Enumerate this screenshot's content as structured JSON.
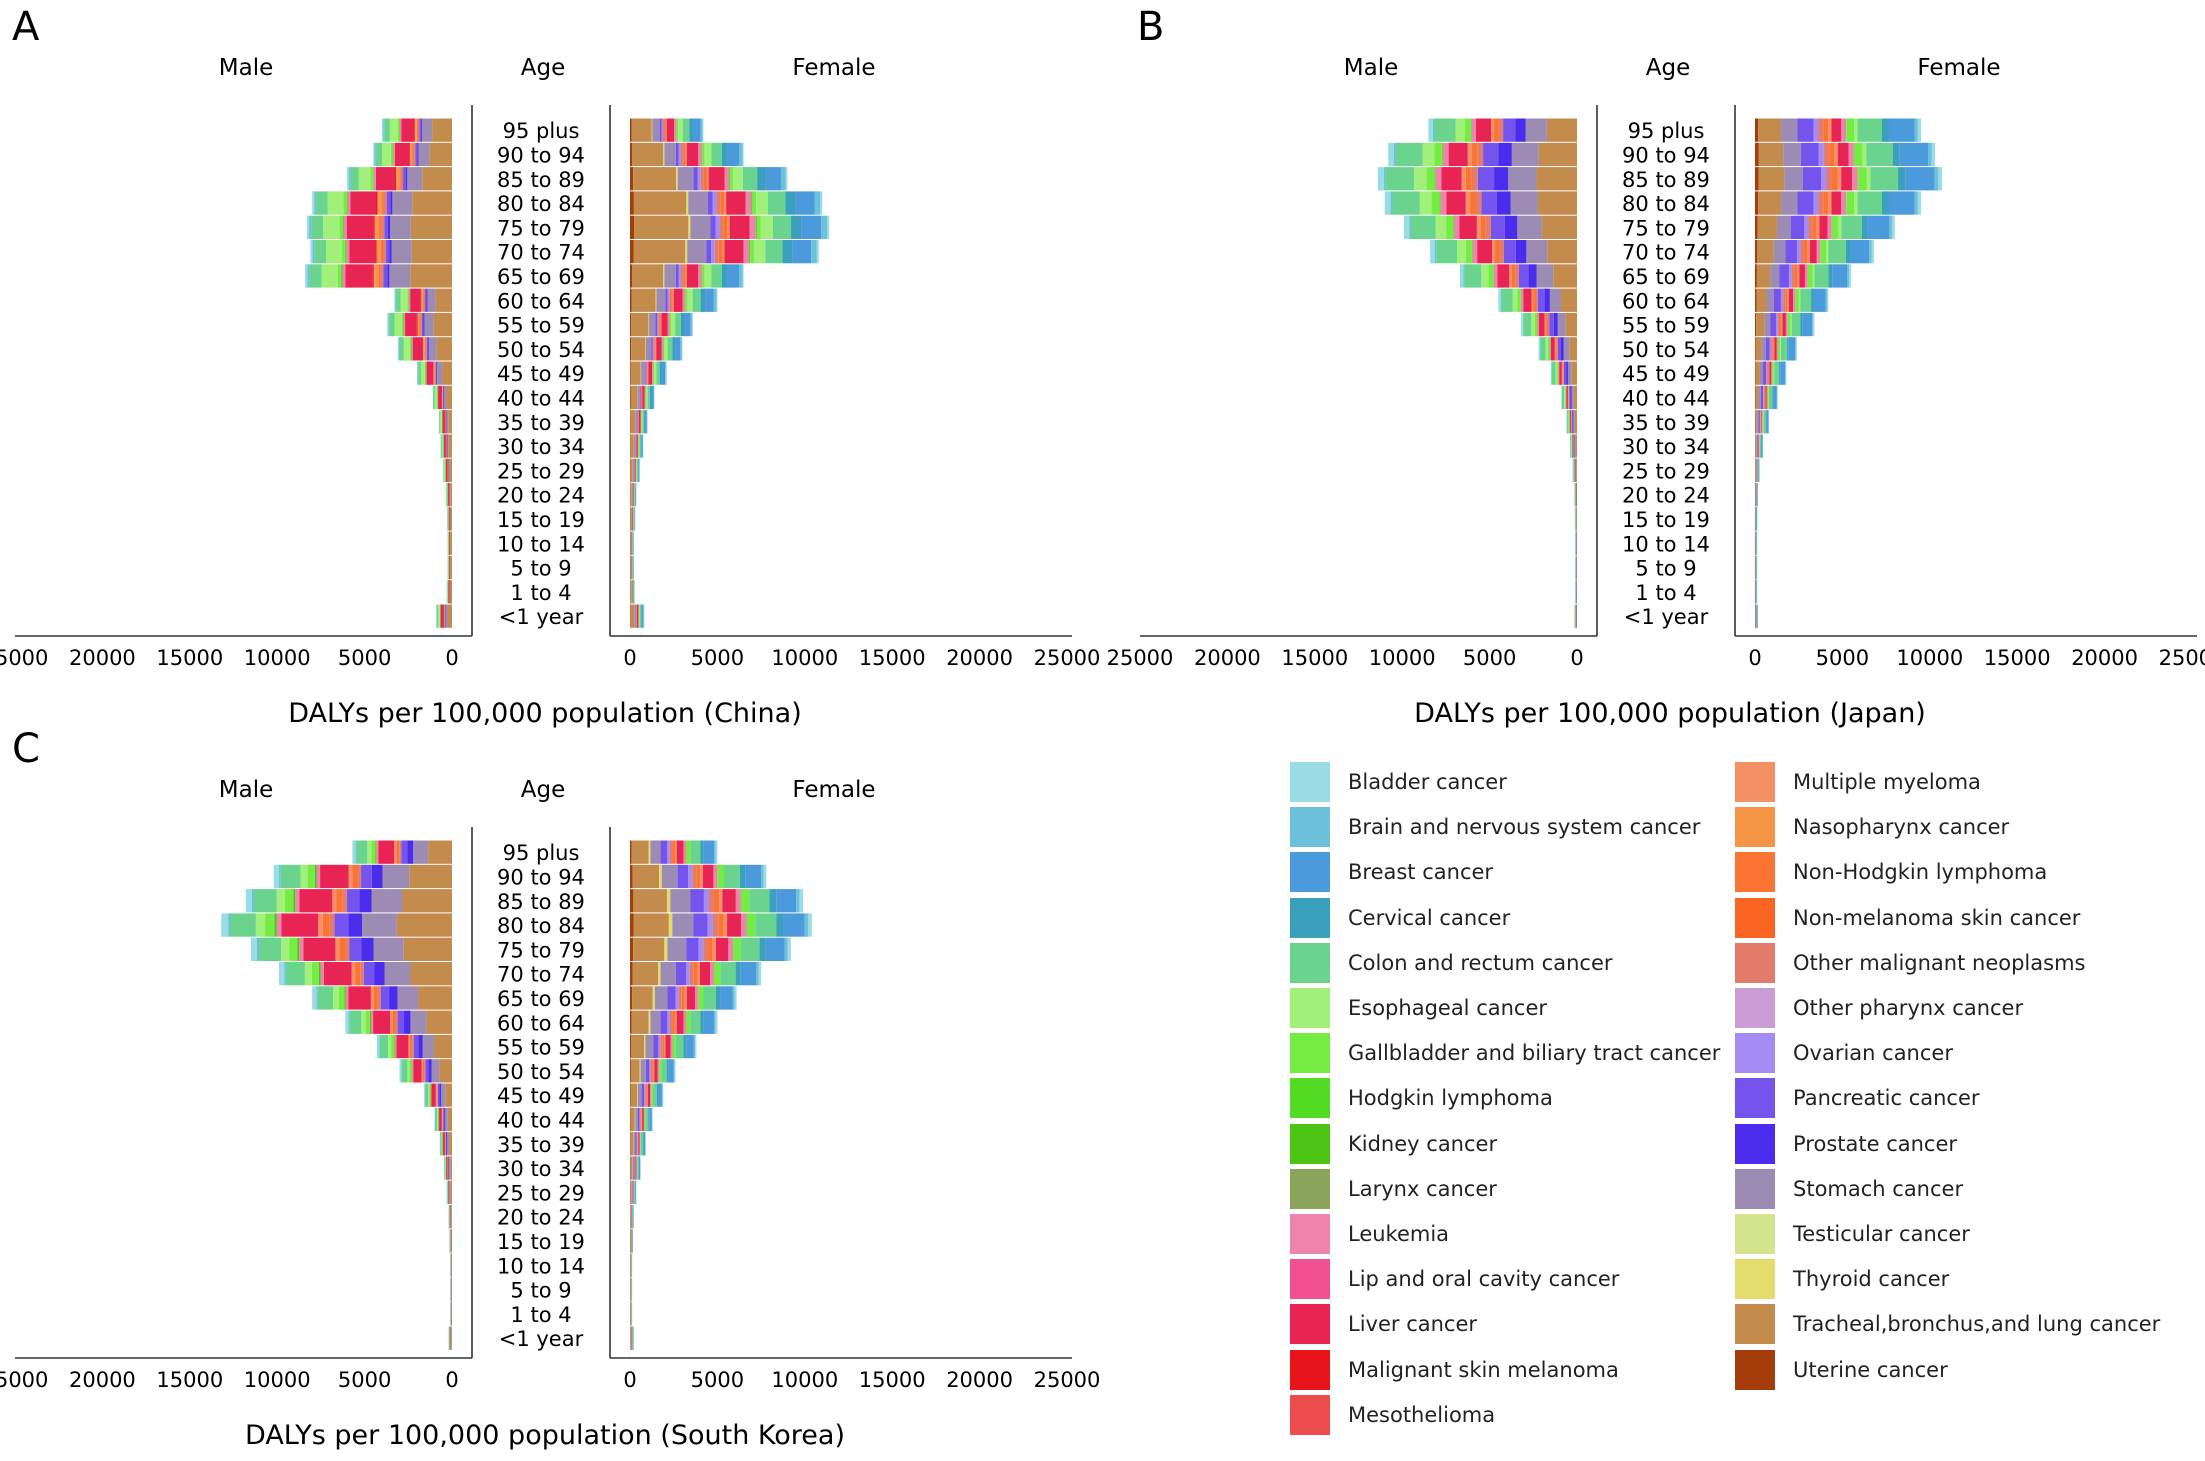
{
  "chart_data": {
    "type": "bar",
    "subtype": "population-pyramid-stacked",
    "age_groups": [
      "<1 year",
      "1 to 4",
      "5 to 9",
      "10 to 14",
      "15 to 19",
      "20 to 24",
      "25 to 29",
      "30 to 34",
      "35 to 39",
      "40 to 44",
      "45 to 49",
      "50 to 54",
      "55 to 59",
      "60 to 64",
      "65 to 69",
      "70 to 74",
      "75 to 79",
      "80 to 84",
      "85 to 89",
      "90 to 94",
      "95 plus"
    ],
    "causes": [
      "Bladder cancer",
      "Brain and nervous system cancer",
      "Breast cancer",
      "Cervical cancer",
      "Colon and rectum cancer",
      "Esophageal cancer",
      "Gallbladder and biliary tract cancer",
      "Hodgkin lymphoma",
      "Kidney cancer",
      "Larynx cancer",
      "Leukemia",
      "Lip and oral cavity cancer",
      "Liver cancer",
      "Malignant skin melanoma",
      "Mesothelioma",
      "Multiple myeloma",
      "Nasopharynx cancer",
      "Non-Hodgkin lymphoma",
      "Non-melanoma skin cancer",
      "Other malignant neoplasms",
      "Other pharynx cancer",
      "Ovarian cancer",
      "Pancreatic cancer",
      "Prostate cancer",
      "Stomach cancer",
      "Testicular cancer",
      "Thyroid cancer",
      "Tracheal,bronchus,and lung cancer",
      "Uterine cancer"
    ],
    "colors": [
      "#9adce4",
      "#6cc0dc",
      "#4a9adc",
      "#3aa0bc",
      "#6ad48e",
      "#a0f07a",
      "#74ec44",
      "#54dc24",
      "#4cc414",
      "#8aa45c",
      "#ec84ac",
      "#f05090",
      "#e82454",
      "#e8141c",
      "#ec4c4c",
      "#f49064",
      "#f49444",
      "#fc7434",
      "#fc6424",
      "#e47c6c",
      "#cc9cd4",
      "#a48cf4",
      "#7454ec",
      "#4c2cec",
      "#9c8cb4",
      "#d4e48c",
      "#e4dc6c",
      "#c48c4c",
      "#a43c0c"
    ],
    "shared_axis": {
      "male_ticks": [
        "25000",
        "20000",
        "15000",
        "10000",
        "5000",
        "0"
      ],
      "female_ticks": [
        "0",
        "5000",
        "10000",
        "15000",
        "20000",
        "25000"
      ],
      "range": [
        0,
        25000
      ]
    },
    "header_labels": {
      "male": "Male",
      "age": "Age",
      "female": "Female"
    },
    "panels": [
      {
        "letter": "A",
        "xlabel": "DALYs per 100,000 population (China)",
        "male_totals": [
          900,
          300,
          250,
          250,
          280,
          350,
          500,
          650,
          750,
          1100,
          2000,
          3100,
          3700,
          3300,
          8400,
          8100,
          8300,
          8000,
          6000,
          4500,
          4000
        ],
        "female_totals": [
          800,
          250,
          200,
          200,
          280,
          350,
          550,
          750,
          1000,
          1400,
          2100,
          3000,
          3600,
          5000,
          6500,
          10800,
          11400,
          11000,
          9000,
          6500,
          4200
        ],
        "male_comp": {
          "Bladder cancer": 0.015,
          "Brain and nervous system cancer": 0.015,
          "Colon and rectum cancer": 0.08,
          "Esophageal cancer": 0.11,
          "Gallbladder and biliary tract cancer": 0.02,
          "Hodgkin lymphoma": 0.005,
          "Kidney cancer": 0.005,
          "Leukemia": 0.02,
          "Liver cancer": 0.18,
          "Malignant skin melanoma": 0.01,
          "Multiple myeloma": 0.01,
          "Nasopharynx cancer": 0.02,
          "Non-Hodgkin lymphoma": 0.015,
          "Other malignant neoplasms": 0.02,
          "Pancreatic cancer": 0.025,
          "Prostate cancer": 0.015,
          "Stomach cancer": 0.14,
          "Tracheal,bronchus,and lung cancer": 0.28
        },
        "female_comp": {
          "Bladder cancer": 0.01,
          "Brain and nervous system cancer": 0.03,
          "Breast cancer": 0.1,
          "Cervical cancer": 0.05,
          "Colon and rectum cancer": 0.09,
          "Esophageal cancer": 0.06,
          "Gallbladder and biliary tract cancer": 0.02,
          "Kidney cancer": 0.005,
          "Leukemia": 0.03,
          "Liver cancer": 0.1,
          "Multiple myeloma": 0.01,
          "Non-Hodgkin lymphoma": 0.02,
          "Other malignant neoplasms": 0.02,
          "Ovarian cancer": 0.02,
          "Pancreatic cancer": 0.025,
          "Stomach cancer": 0.1,
          "Thyroid cancer": 0.01,
          "Tracheal,bronchus,and lung cancer": 0.27,
          "Uterine cancer": 0.02
        }
      },
      {
        "letter": "B",
        "xlabel": "DALYs per 100,000 population (Japan)",
        "male_totals": [
          150,
          100,
          100,
          100,
          120,
          150,
          250,
          400,
          600,
          900,
          1500,
          2200,
          3200,
          4500,
          6700,
          8400,
          9900,
          11000,
          11400,
          10800,
          8500
        ],
        "female_totals": [
          150,
          100,
          100,
          100,
          120,
          150,
          250,
          450,
          800,
          1300,
          1800,
          2400,
          3400,
          4200,
          5500,
          6800,
          8000,
          9500,
          10700,
          10300,
          9500
        ],
        "male_comp": {
          "Bladder cancer": 0.03,
          "Brain and nervous system cancer": 0.01,
          "Colon and rectum cancer": 0.14,
          "Esophageal cancer": 0.06,
          "Gallbladder and biliary tract cancer": 0.04,
          "Hodgkin lymphoma": 0.005,
          "Leukemia": 0.03,
          "Liver cancer": 0.1,
          "Multiple myeloma": 0.02,
          "Non-Hodgkin lymphoma": 0.03,
          "Other malignant neoplasms": 0.03,
          "Pancreatic cancer": 0.08,
          "Prostate cancer": 0.07,
          "Stomach cancer": 0.14,
          "Tracheal,bronchus,and lung cancer": 0.2
        },
        "female_comp": {
          "Bladder cancer": 0.02,
          "Brain and nervous system cancer": 0.02,
          "Breast cancer": 0.16,
          "Cervical cancer": 0.04,
          "Colon and rectum cancer": 0.15,
          "Esophageal cancer": 0.02,
          "Gallbladder and biliary tract cancer": 0.05,
          "Leukemia": 0.03,
          "Liver cancer": 0.06,
          "Multiple myeloma": 0.02,
          "Non-Hodgkin lymphoma": 0.03,
          "Other malignant neoplasms": 0.03,
          "Ovarian cancer": 0.03,
          "Pancreatic cancer": 0.1,
          "Stomach cancer": 0.1,
          "Tracheal,bronchus,and lung cancer": 0.14,
          "Uterine cancer": 0.02
        }
      },
      {
        "letter": "C",
        "xlabel": "DALYs per 100,000 population (South Korea)",
        "male_totals": [
          200,
          100,
          100,
          100,
          150,
          200,
          300,
          450,
          700,
          1000,
          1600,
          3000,
          4300,
          6100,
          8000,
          9900,
          11500,
          13200,
          11800,
          10200,
          5700
        ],
        "female_totals": [
          200,
          100,
          100,
          100,
          150,
          200,
          350,
          600,
          900,
          1300,
          1900,
          2600,
          3800,
          5000,
          6100,
          7500,
          9200,
          10400,
          9900,
          7800,
          5000
        ],
        "male_comp": {
          "Bladder cancer": 0.03,
          "Brain and nervous system cancer": 0.01,
          "Colon and rectum cancer": 0.11,
          "Esophageal cancer": 0.04,
          "Gallbladder and biliary tract cancer": 0.04,
          "Kidney cancer": 0.01,
          "Leukemia": 0.02,
          "Liver cancer": 0.16,
          "Multiple myeloma": 0.02,
          "Non-Hodgkin lymphoma": 0.03,
          "Other malignant neoplasms": 0.02,
          "Pancreatic cancer": 0.06,
          "Prostate cancer": 0.06,
          "Stomach cancer": 0.15,
          "Tracheal,bronchus,and lung cancer": 0.24
        },
        "female_comp": {
          "Bladder cancer": 0.02,
          "Brain and nervous system cancer": 0.02,
          "Breast cancer": 0.12,
          "Cervical cancer": 0.04,
          "Colon and rectum cancer": 0.12,
          "Gallbladder and biliary tract cancer": 0.05,
          "Leukemia": 0.03,
          "Liver cancer": 0.08,
          "Multiple myeloma": 0.02,
          "Non-Hodgkin lymphoma": 0.03,
          "Other malignant neoplasms": 0.03,
          "Ovarian cancer": 0.03,
          "Pancreatic cancer": 0.08,
          "Stomach cancer": 0.12,
          "Thyroid cancer": 0.02,
          "Tracheal,bronchus,and lung cancer": 0.2,
          "Uterine cancer": 0.02
        }
      }
    ]
  }
}
